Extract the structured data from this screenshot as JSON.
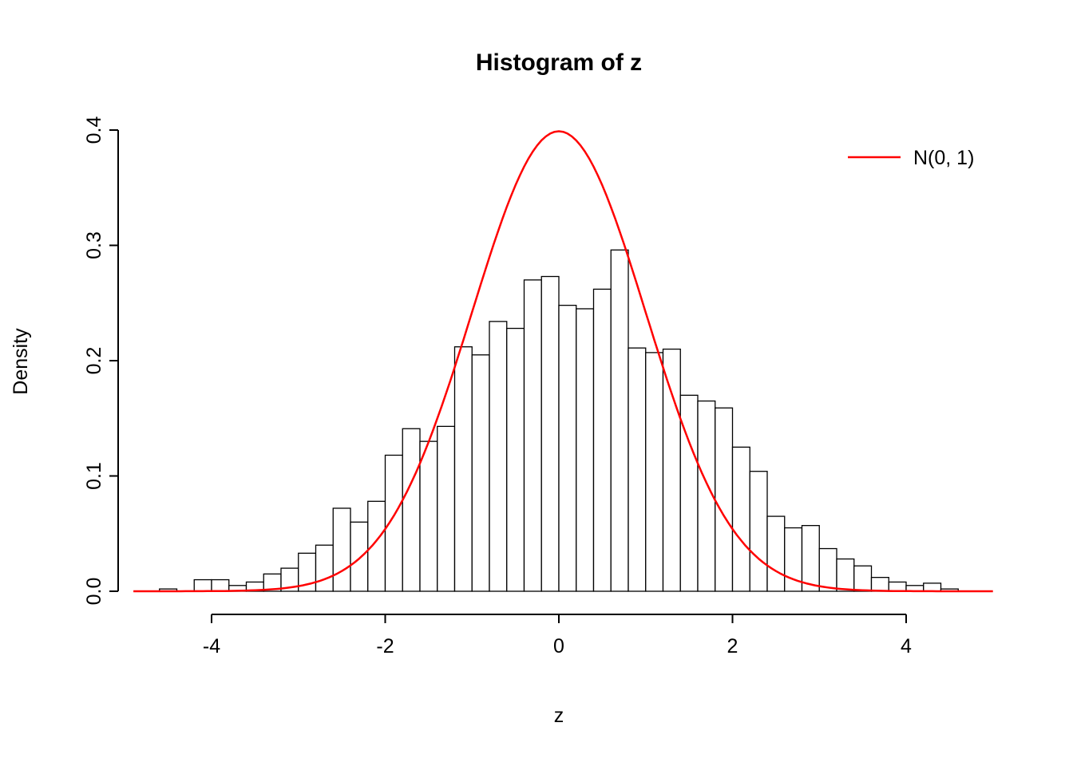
{
  "chart_data": {
    "type": "bar",
    "subtype": "histogram-with-density-curve",
    "title": "Histogram of z",
    "xlabel": "z",
    "ylabel": "Density",
    "xlim": [
      -5,
      5
    ],
    "ylim": [
      0,
      0.4
    ],
    "x_ticks": [
      -4,
      -2,
      0,
      2,
      4
    ],
    "y_ticks": [
      0.0,
      0.1,
      0.2,
      0.3,
      0.4
    ],
    "grid": false,
    "bar_fill": "#ffffff",
    "bar_stroke": "#000000",
    "bin_start": -4.6,
    "bin_width": 0.2,
    "densities": [
      0.002,
      0,
      0.01,
      0.01,
      0.005,
      0.008,
      0.015,
      0.02,
      0.033,
      0.04,
      0.072,
      0.06,
      0.078,
      0.118,
      0.141,
      0.13,
      0.143,
      0.212,
      0.205,
      0.234,
      0.228,
      0.27,
      0.273,
      0.248,
      0.245,
      0.262,
      0.296,
      0.211,
      0.207,
      0.21,
      0.17,
      0.165,
      0.159,
      0.125,
      0.104,
      0.065,
      0.055,
      0.057,
      0.037,
      0.028,
      0.022,
      0.012,
      0.008,
      0.005,
      0.007,
      0.002
    ],
    "curve": {
      "name": "N(0, 1)",
      "distribution": "normal",
      "mean": 0,
      "sd": 1,
      "color": "#ff0000",
      "x_range": [
        -4.9,
        5.0
      ]
    },
    "legend": {
      "label": "N(0, 1)",
      "position": "topright",
      "line_color": "#ff0000"
    }
  }
}
